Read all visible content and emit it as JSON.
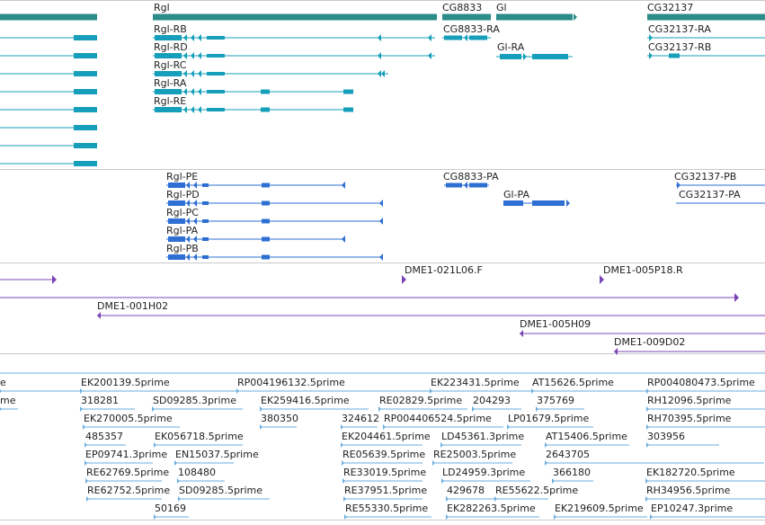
{
  "colors": {
    "gene": "#2b8c8a",
    "transcript": "#159fba",
    "protein": "#2d6fd3",
    "bac": "#7b45b8",
    "est": "#6aaee0",
    "divider": "#c8c8c8",
    "label": "#222222"
  },
  "tracks": {
    "genes": {
      "items": [
        {
          "label": "Rgl"
        },
        {
          "label": "CG8833"
        },
        {
          "label": "Gl"
        },
        {
          "label": "CG32137"
        }
      ]
    },
    "transcripts": {
      "items": [
        {
          "label": "Rgl-RB"
        },
        {
          "label": "Rgl-RD"
        },
        {
          "label": "Rgl-RC"
        },
        {
          "label": "Rgl-RA"
        },
        {
          "label": "Rgl-RE"
        },
        {
          "label": "CG8833-RA"
        },
        {
          "label": "Gl-RA"
        },
        {
          "label": "CG32137-RA"
        },
        {
          "label": "CG32137-RB"
        }
      ]
    },
    "proteins": {
      "items": [
        {
          "label": "Rgl-PE"
        },
        {
          "label": "Rgl-PD"
        },
        {
          "label": "Rgl-PC"
        },
        {
          "label": "Rgl-PA"
        },
        {
          "label": "Rgl-PB"
        },
        {
          "label": "CG8833-PA"
        },
        {
          "label": "Gl-PA"
        },
        {
          "label": "CG32137-PB"
        },
        {
          "label": "CG32137-PA"
        }
      ]
    },
    "bacs": {
      "items": [
        {
          "label": "DME1-021L06.F"
        },
        {
          "label": "DME1-005P18.R"
        },
        {
          "label": "DME1-001H02"
        },
        {
          "label": "DME1-005H09"
        },
        {
          "label": "DME1-009D02"
        }
      ]
    },
    "ests": {
      "items": [
        {
          "label": "e"
        },
        {
          "label": "EK200139.5prime"
        },
        {
          "label": "RP004196132.5prime"
        },
        {
          "label": "EK223431.5prime"
        },
        {
          "label": "AT15626.5prime"
        },
        {
          "label": "RP004080473.5prime"
        },
        {
          "label": "me"
        },
        {
          "label": "318281"
        },
        {
          "label": "SD09285.3prime"
        },
        {
          "label": "EK259416.5prime"
        },
        {
          "label": "RE02829.5prime"
        },
        {
          "label": "204293"
        },
        {
          "label": "375769"
        },
        {
          "label": "RH12096.5prime"
        },
        {
          "label": "EK270005.5prime"
        },
        {
          "label": "380350"
        },
        {
          "label": "324612"
        },
        {
          "label": "RP004406524.5prime"
        },
        {
          "label": "LP01679.5prime"
        },
        {
          "label": "RH70395.5prime"
        },
        {
          "label": "485357"
        },
        {
          "label": "EK056718.5prime"
        },
        {
          "label": "EK204461.5prime"
        },
        {
          "label": "LD45361.3prime"
        },
        {
          "label": "AT15406.5prime"
        },
        {
          "label": "303956"
        },
        {
          "label": "EP09741.3prime"
        },
        {
          "label": "EN15037.5prime"
        },
        {
          "label": "RE05639.5prime"
        },
        {
          "label": "RE25003.5prime"
        },
        {
          "label": "2643705"
        },
        {
          "label": "RE62769.5prime"
        },
        {
          "label": "108480"
        },
        {
          "label": "RE33019.5prime"
        },
        {
          "label": "LD24959.3prime"
        },
        {
          "label": "366180"
        },
        {
          "label": "EK182720.5prime"
        },
        {
          "label": "RE62752.5prime"
        },
        {
          "label": "SD09285.5prime"
        },
        {
          "label": "RE37951.5prime"
        },
        {
          "label": "429678"
        },
        {
          "label": "RE55622.5prime"
        },
        {
          "label": "RH34956.5prime"
        },
        {
          "label": "50169"
        },
        {
          "label": "RE55330.5prime"
        },
        {
          "label": "EK282263.5prime"
        },
        {
          "label": "EK219609.5prime"
        },
        {
          "label": "EP10247.3prime"
        }
      ]
    }
  }
}
